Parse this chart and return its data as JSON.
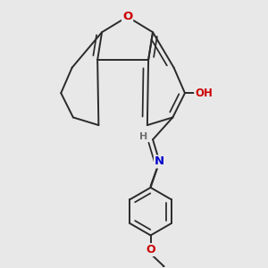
{
  "bg_color": "#e8e8e8",
  "bond_color": "#2a2a2a",
  "bond_width": 1.4,
  "O_color": "#cc0000",
  "N_color": "#0000cc",
  "H_color": "#707070",
  "fig_width": 3.0,
  "fig_height": 3.0,
  "dpi": 100,
  "xlim": [
    0,
    10
  ],
  "ylim": [
    -1,
    11
  ]
}
